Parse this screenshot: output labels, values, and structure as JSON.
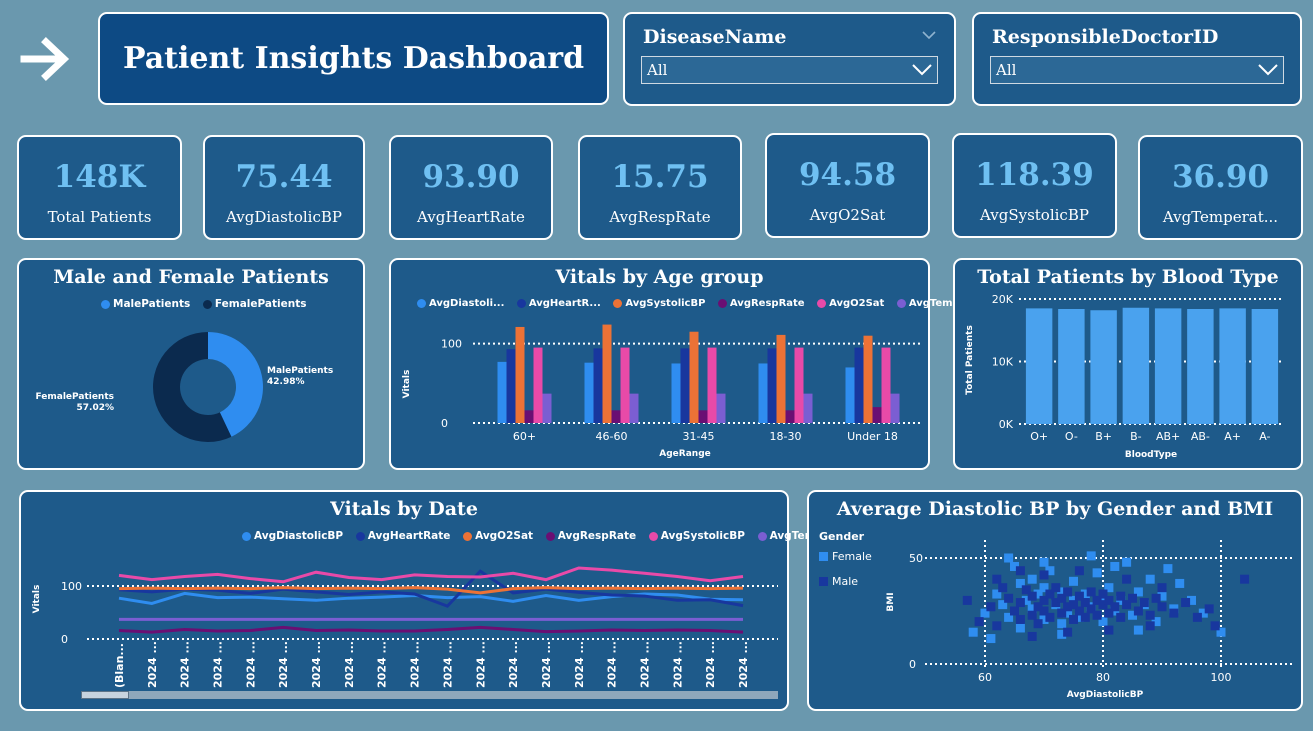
{
  "header": {
    "title": "Patient Insights Dashboard",
    "back_icon": "arrow-right-icon"
  },
  "slicers": {
    "disease": {
      "title": "DiseaseName",
      "value": "All"
    },
    "doctor": {
      "title": "ResponsibleDoctorID",
      "value": "All"
    }
  },
  "kpis": [
    {
      "value": "148K",
      "label": "Total Patients"
    },
    {
      "value": "75.44",
      "label": "AvgDiastolicBP"
    },
    {
      "value": "93.90",
      "label": "AvgHeartRate"
    },
    {
      "value": "15.75",
      "label": "AvgRespRate"
    },
    {
      "value": "94.58",
      "label": "AvgO2Sat"
    },
    {
      "value": "118.39",
      "label": "AvgSystolicBP"
    },
    {
      "value": "36.90",
      "label": "AvgTemperat..."
    }
  ],
  "colors": {
    "background": "#6a98ae",
    "card": "#1e5a8a",
    "title_card": "#0d4a84",
    "kpi_value": "#6fc0f2",
    "light_blue": "#2f8df0",
    "navy": "#18379e",
    "orange": "#ec7236",
    "purple_dark": "#6a0f73",
    "pink": "#e84aa8",
    "lavender": "#7b5ed2",
    "bar_blue": "#4aa2ee",
    "dark_navy": "#0b2a4e"
  },
  "chart_data": [
    {
      "type": "pie",
      "title": "Male and Female Patients",
      "legend": [
        "MalePatients",
        "FemalePatients"
      ],
      "slices": [
        {
          "name": "MalePatients",
          "value": 42.98,
          "label": "MalePatients",
          "pct": "42.98%",
          "color": "#2f8df0"
        },
        {
          "name": "FemalePatients",
          "value": 57.02,
          "label": "FemalePatients",
          "pct": "57.02%",
          "color": "#0b2a4e"
        }
      ]
    },
    {
      "type": "bar",
      "title": "Vitals by Age group",
      "xlabel": "AgeRange",
      "ylabel": "Vitals",
      "ylim": [
        0,
        160
      ],
      "yticks": [
        "0",
        "100"
      ],
      "legend_labels": [
        "AvgDiastoli...",
        "AvgHeartR...",
        "AvgSystolicBP",
        "AvgRespRate",
        "AvgO2Sat",
        "AvgTemper..."
      ],
      "categories": [
        "60+",
        "46-60",
        "31-45",
        "18-30",
        "Under 18"
      ],
      "series": [
        {
          "name": "AvgDiastolicBP",
          "color": "#2f8df0",
          "values": [
            77,
            76,
            75,
            75,
            70
          ]
        },
        {
          "name": "AvgHeartRate",
          "color": "#18379e",
          "values": [
            93,
            94,
            94,
            94,
            95
          ]
        },
        {
          "name": "AvgSystolicBP",
          "color": "#ec7236",
          "values": [
            121,
            124,
            115,
            111,
            110
          ]
        },
        {
          "name": "AvgRespRate",
          "color": "#6a0f73",
          "values": [
            16,
            16,
            16,
            16,
            20
          ]
        },
        {
          "name": "AvgO2Sat",
          "color": "#e84aa8",
          "values": [
            95,
            95,
            95,
            95,
            95
          ]
        },
        {
          "name": "AvgTemperature",
          "color": "#7b5ed2",
          "values": [
            37,
            37,
            37,
            37,
            37
          ]
        }
      ]
    },
    {
      "type": "bar",
      "title": "Total Patients by Blood Type",
      "xlabel": "BloodType",
      "ylabel": "Total Patients",
      "ylim": [
        0,
        20000
      ],
      "yticks": [
        "0K",
        "10K",
        "20K"
      ],
      "categories": [
        "O+",
        "O-",
        "B+",
        "B-",
        "AB+",
        "AB-",
        "A+",
        "A-"
      ],
      "values": [
        18500,
        18400,
        18200,
        18600,
        18500,
        18400,
        18500,
        18400
      ],
      "color": "#4aa2ee"
    },
    {
      "type": "line",
      "title": "Vitals by Date",
      "ylabel": "Vitals",
      "ylim": [
        0,
        150
      ],
      "yticks": [
        "0",
        "100"
      ],
      "x_ticks": [
        "(Blan...",
        "2024 ...",
        "2024 ...",
        "2024 ...",
        "2024 ...",
        "2024 ...",
        "2024 ...",
        "2024 ...",
        "2024 ...",
        "2024 ...",
        "2024 ...",
        "2024 ...",
        "2024 ...",
        "2024 ...",
        "2024 ...",
        "2024 ...",
        "2024 ...",
        "2024 ...",
        "2024 ...",
        "2024 ..."
      ],
      "legend": [
        "AvgDiastolicBP",
        "AvgHeartRate",
        "AvgO2Sat",
        "AvgRespRate",
        "AvgSystolicBP",
        "AvgTemperature"
      ],
      "series": [
        {
          "name": "AvgDiastolicBP",
          "color": "#2f8df0",
          "values": [
            77,
            67,
            86,
            78,
            79,
            76,
            73,
            77,
            79,
            82,
            78,
            80,
            71,
            82,
            73,
            80,
            85,
            83,
            75,
            74
          ]
        },
        {
          "name": "AvgHeartRate",
          "color": "#18379e",
          "values": [
            93,
            89,
            94,
            92,
            86,
            94,
            89,
            84,
            89,
            85,
            62,
            128,
            87,
            94,
            88,
            83,
            81,
            73,
            74,
            63
          ]
        },
        {
          "name": "AvgO2Sat",
          "color": "#ec7236",
          "values": [
            95,
            96,
            95,
            96,
            95,
            97,
            95,
            96,
            95,
            97,
            94,
            87,
            95,
            97,
            95,
            96,
            95,
            96,
            95,
            96
          ]
        },
        {
          "name": "AvgRespRate",
          "color": "#6a0f73",
          "values": [
            16,
            13,
            18,
            15,
            16,
            22,
            16,
            17,
            15,
            15,
            18,
            22,
            18,
            14,
            15,
            17,
            16,
            17,
            16,
            13
          ]
        },
        {
          "name": "AvgSystolicBP",
          "color": "#e84aa8",
          "values": [
            120,
            112,
            118,
            122,
            114,
            108,
            126,
            116,
            112,
            121,
            118,
            117,
            124,
            112,
            134,
            130,
            124,
            118,
            110,
            118
          ]
        },
        {
          "name": "AvgTemperature",
          "color": "#7b5ed2",
          "values": [
            37,
            37,
            37,
            37,
            37,
            37,
            37,
            37,
            37,
            37,
            37,
            37,
            37,
            37,
            37,
            37,
            37,
            37,
            37,
            37
          ]
        }
      ]
    },
    {
      "type": "scatter",
      "title": "Average Diastolic BP by Gender and BMI",
      "xlabel": "AvgDiastolicBP",
      "ylabel": "BMI",
      "xlim": [
        50,
        110
      ],
      "ylim": [
        0,
        55
      ],
      "xticks": [
        "60",
        "80",
        "100"
      ],
      "yticks": [
        "0",
        "50"
      ],
      "legend_title": "Gender",
      "series": [
        {
          "name": "Female",
          "color": "#2f8df0",
          "points": [
            [
              58,
              15
            ],
            [
              60,
              24
            ],
            [
              62,
              33
            ],
            [
              63,
              28
            ],
            [
              64,
              22
            ],
            [
              65,
              46
            ],
            [
              66,
              38
            ],
            [
              66,
              17
            ],
            [
              67,
              30
            ],
            [
              68,
              26
            ],
            [
              68,
              40
            ],
            [
              69,
              33
            ],
            [
              70,
              21
            ],
            [
              70,
              36
            ],
            [
              71,
              44
            ],
            [
              72,
              28
            ],
            [
              73,
              19
            ],
            [
              73,
              34
            ],
            [
              74,
              24
            ],
            [
              75,
              39
            ],
            [
              75,
              30
            ],
            [
              76,
              22
            ],
            [
              77,
              33
            ],
            [
              78,
              27
            ],
            [
              79,
              43
            ],
            [
              80,
              31
            ],
            [
              80,
              20
            ],
            [
              81,
              36
            ],
            [
              82,
              25
            ],
            [
              83,
              30
            ],
            [
              84,
              48
            ],
            [
              85,
              23
            ],
            [
              86,
              34
            ],
            [
              87,
              28
            ],
            [
              88,
              40
            ],
            [
              89,
              20
            ],
            [
              90,
              32
            ],
            [
              92,
              26
            ],
            [
              93,
              38
            ],
            [
              95,
              30
            ],
            [
              97,
              24
            ],
            [
              100,
              15
            ],
            [
              64,
              50
            ],
            [
              70,
              48
            ],
            [
              78,
              51
            ],
            [
              82,
              46
            ],
            [
              91,
              45
            ],
            [
              61,
              12
            ],
            [
              73,
              14
            ],
            [
              86,
              16
            ]
          ]
        },
        {
          "name": "Male",
          "color": "#18379e",
          "points": [
            [
              57,
              30
            ],
            [
              59,
              20
            ],
            [
              61,
              27
            ],
            [
              62,
              18
            ],
            [
              63,
              36
            ],
            [
              64,
              31
            ],
            [
              65,
              25
            ],
            [
              66,
              29
            ],
            [
              66,
              21
            ],
            [
              67,
              35
            ],
            [
              68,
              23
            ],
            [
              68,
              32
            ],
            [
              69,
              27
            ],
            [
              69,
              19
            ],
            [
              70,
              30
            ],
            [
              70,
              25
            ],
            [
              71,
              33
            ],
            [
              71,
              22
            ],
            [
              72,
              29
            ],
            [
              72,
              36
            ],
            [
              73,
              24
            ],
            [
              73,
              31
            ],
            [
              74,
              27
            ],
            [
              74,
              34
            ],
            [
              75,
              21
            ],
            [
              75,
              28
            ],
            [
              76,
              32
            ],
            [
              76,
              25
            ],
            [
              77,
              29
            ],
            [
              77,
              22
            ],
            [
              78,
              34
            ],
            [
              78,
              26
            ],
            [
              79,
              30
            ],
            [
              79,
              23
            ],
            [
              80,
              28
            ],
            [
              80,
              33
            ],
            [
              81,
              24
            ],
            [
              81,
              30
            ],
            [
              82,
              27
            ],
            [
              83,
              32
            ],
            [
              83,
              22
            ],
            [
              84,
              28
            ],
            [
              85,
              31
            ],
            [
              86,
              25
            ],
            [
              87,
              29
            ],
            [
              88,
              23
            ],
            [
              89,
              31
            ],
            [
              90,
              27
            ],
            [
              92,
              24
            ],
            [
              94,
              29
            ],
            [
              96,
              22
            ],
            [
              98,
              26
            ],
            [
              104,
              40
            ],
            [
              70,
              42
            ],
            [
              76,
              44
            ],
            [
              84,
              40
            ],
            [
              66,
              44
            ],
            [
              90,
              36
            ],
            [
              62,
              40
            ],
            [
              99,
              18
            ],
            [
              74,
              15
            ],
            [
              81,
              16
            ],
            [
              88,
              18
            ],
            [
              68,
              13
            ]
          ]
        }
      ]
    }
  ]
}
